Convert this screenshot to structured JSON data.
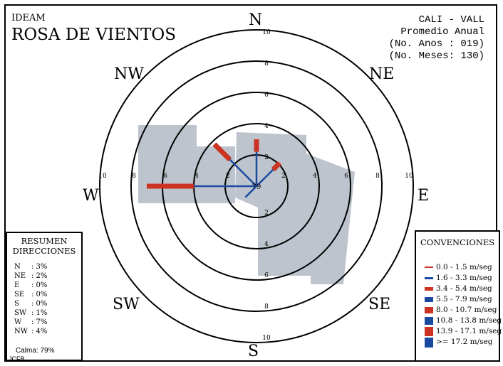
{
  "header": {
    "org": "IDEAM",
    "title": "ROSA DE VIENTOS",
    "station": "CALI - VALL",
    "subtitle": "Promedio Anual",
    "years": "(No. Anos : 019)",
    "months": "(No. Meses: 130)"
  },
  "cardinals": {
    "N": "N",
    "NE": "NE",
    "E": "E",
    "SE": "SE",
    "S": "S",
    "SW": "SW",
    "W": "W",
    "NW": "NW"
  },
  "summary": {
    "title_line1": "RESUMEN",
    "title_line2": "DIRECCIONES",
    "rows": [
      {
        "dir": "N",
        "pct": ": 3%"
      },
      {
        "dir": "NE",
        "pct": ": 2%"
      },
      {
        "dir": "E",
        "pct": ": 0%"
      },
      {
        "dir": "SE",
        "pct": ": 0%"
      },
      {
        "dir": "S",
        "pct": ": 0%"
      },
      {
        "dir": "SW",
        "pct": ": 1%"
      },
      {
        "dir": "W",
        "pct": ": 7%"
      },
      {
        "dir": "NW",
        "pct": ": 4%"
      }
    ],
    "calma": "Calma: 79%",
    "credit": "JCFB"
  },
  "legend": {
    "title": "CONVENCIONES",
    "items": [
      {
        "label": "0.0 - 1.5 m/seg",
        "color": "#cc3322"
      },
      {
        "label": "1.6 - 3.3 m/seg",
        "color": "#1a4aa0"
      },
      {
        "label": "3.4 - 5.4 m/seg",
        "color": "#cc3322"
      },
      {
        "label": "5.5 - 7.9 m/seg",
        "color": "#1a4aa0"
      },
      {
        "label": "8.0 - 10.7 m/seg",
        "color": "#cc3322"
      },
      {
        "label": "10.8 - 13.8 m/seg",
        "color": "#1a4aa0"
      },
      {
        "label": "13.9 - 17.1 m/seg",
        "color": "#cc3322"
      },
      {
        "label": ">= 17.2 m/seg",
        "color": "#1a4aa0"
      }
    ]
  },
  "chart_data": {
    "type": "wind-rose",
    "center_label": "79",
    "ring_values": [
      2,
      4,
      6,
      8,
      10
    ],
    "directions": [
      "N",
      "NE",
      "E",
      "SE",
      "S",
      "SW",
      "W",
      "NW"
    ],
    "sectors": [
      {
        "dir": "N",
        "angle": 0,
        "segments": [
          {
            "class": "1.6 - 3.3 m/seg",
            "value": 2.2
          },
          {
            "class": "3.4 - 5.4 m/seg",
            "value": 0.8
          }
        ]
      },
      {
        "dir": "NE",
        "angle": 45,
        "segments": [
          {
            "class": "1.6 - 3.3 m/seg",
            "value": 1.5
          },
          {
            "class": "3.4 - 5.4 m/seg",
            "value": 0.6
          }
        ]
      },
      {
        "dir": "SW",
        "angle": 225,
        "segments": [
          {
            "class": "1.6 - 3.3 m/seg",
            "value": 1.0
          }
        ]
      },
      {
        "dir": "W",
        "angle": 270,
        "segments": [
          {
            "class": "1.6 - 3.3 m/seg",
            "value": 4.0
          },
          {
            "class": "3.4 - 5.4 m/seg",
            "value": 3.0
          }
        ]
      },
      {
        "dir": "NW",
        "angle": 315,
        "segments": [
          {
            "class": "1.6 - 3.3 m/seg",
            "value": 2.4
          },
          {
            "class": "3.4 - 5.4 m/seg",
            "value": 1.4
          }
        ]
      }
    ],
    "colors": {
      "red": "#cc3322",
      "blue": "#1a4aa0",
      "shade": "#b8bfc9"
    }
  }
}
